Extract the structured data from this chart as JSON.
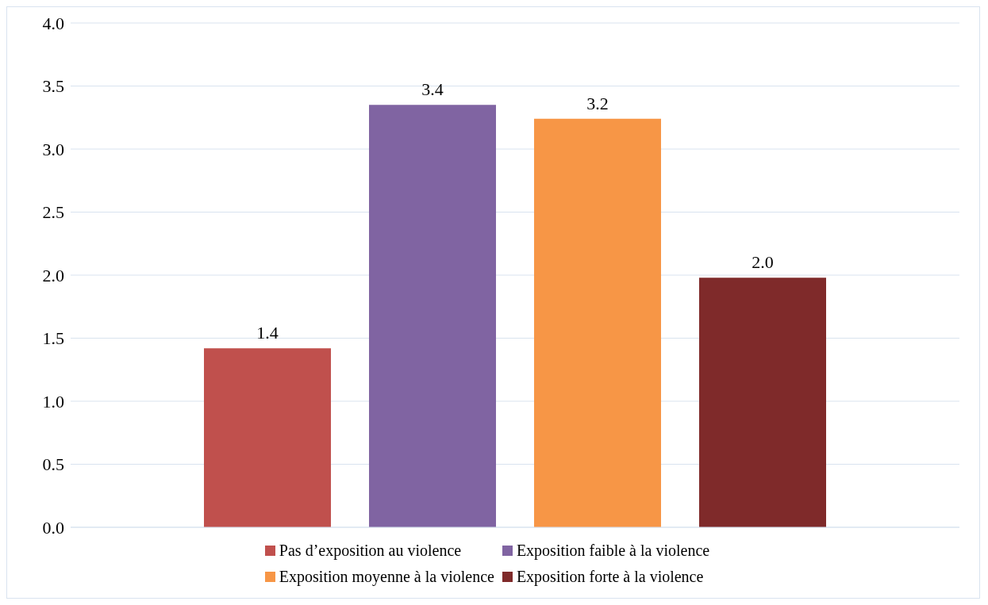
{
  "chart_data": {
    "type": "bar",
    "categories": [
      null
    ],
    "series": [
      {
        "name": "Pas d’exposition au violence",
        "color": "#c0504d",
        "values": [
          1.42
        ],
        "value_labels": [
          "1.4"
        ]
      },
      {
        "name": "Exposition faible à la violence",
        "color": "#8064a2",
        "values": [
          3.35
        ],
        "value_labels": [
          "3.4"
        ]
      },
      {
        "name": "Exposition moyenne à la violence",
        "color": "#f79646",
        "values": [
          3.24
        ],
        "value_labels": [
          "3.2"
        ]
      },
      {
        "name": "Exposition forte à la violence",
        "color": "#7f2a2a",
        "values": [
          1.98
        ],
        "value_labels": [
          "2.0"
        ]
      }
    ],
    "ylim": [
      0,
      4
    ],
    "yticks": [
      {
        "value": 0,
        "label": "0.0"
      },
      {
        "value": 0.5,
        "label": "0.5"
      },
      {
        "value": 1,
        "label": "1.0"
      },
      {
        "value": 1.5,
        "label": "1.5"
      },
      {
        "value": 2,
        "label": "2.0"
      },
      {
        "value": 2.5,
        "label": "2.5"
      },
      {
        "value": 3,
        "label": "3.0"
      },
      {
        "value": 3.5,
        "label": "3.5"
      },
      {
        "value": 4,
        "label": "4.0"
      }
    ],
    "grid": "y",
    "legend": "bottom",
    "tick_labels": "y"
  }
}
